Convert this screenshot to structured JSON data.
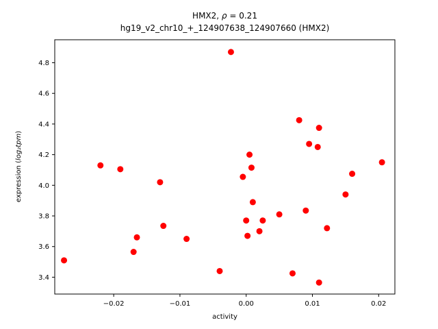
{
  "figure": {
    "title_prefix": "HMX2, ",
    "title_rho": "ρ",
    "title_suffix": " = 0.21",
    "subtitle": "hg19_v2_chr10_+_124907638_124907660 (HMX2)",
    "xlabel": "activity",
    "ylabel_prefix": "expression (",
    "ylabel_math": "log₂tpm",
    "ylabel_suffix": ")"
  },
  "chart_data": {
    "type": "scatter",
    "title": "HMX2, ρ = 0.21",
    "subtitle": "hg19_v2_chr10_+_124907638_124907660 (HMX2)",
    "xlabel": "activity",
    "ylabel": "expression (log2tpm)",
    "legend": "none",
    "grid": false,
    "marker_color": "#ff0000",
    "marker_radius": 4.5,
    "xlim": [
      -0.0289,
      0.02245
    ],
    "ylim": [
      3.29,
      4.95
    ],
    "xticks": [
      {
        "value": -0.02,
        "label": "−0.02"
      },
      {
        "value": -0.01,
        "label": "−0.01"
      },
      {
        "value": 0.0,
        "label": "0.00"
      },
      {
        "value": 0.01,
        "label": "0.01"
      },
      {
        "value": 0.02,
        "label": "0.02"
      }
    ],
    "yticks": [
      {
        "value": 3.4,
        "label": "3.4"
      },
      {
        "value": 3.6,
        "label": "3.6"
      },
      {
        "value": 3.8,
        "label": "3.8"
      },
      {
        "value": 4.0,
        "label": "4.0"
      },
      {
        "value": 4.2,
        "label": "4.2"
      },
      {
        "value": 4.4,
        "label": "4.4"
      },
      {
        "value": 4.6,
        "label": "4.6"
      },
      {
        "value": 4.8,
        "label": "4.8"
      }
    ],
    "points": [
      [
        -0.0275,
        3.51
      ],
      [
        -0.022,
        4.13
      ],
      [
        -0.019,
        4.105
      ],
      [
        -0.017,
        3.565
      ],
      [
        -0.0165,
        3.66
      ],
      [
        -0.013,
        4.02
      ],
      [
        -0.0125,
        3.735
      ],
      [
        -0.009,
        3.65
      ],
      [
        -0.004,
        3.44
      ],
      [
        -0.0023,
        4.87
      ],
      [
        -0.0005,
        4.055
      ],
      [
        0.0,
        3.77
      ],
      [
        0.0002,
        3.67
      ],
      [
        0.0005,
        4.2
      ],
      [
        0.0008,
        4.115
      ],
      [
        0.001,
        3.89
      ],
      [
        0.002,
        3.7
      ],
      [
        0.0025,
        3.77
      ],
      [
        0.005,
        3.81
      ],
      [
        0.007,
        3.425
      ],
      [
        0.008,
        4.425
      ],
      [
        0.009,
        3.835
      ],
      [
        0.0095,
        4.27
      ],
      [
        0.0108,
        4.25
      ],
      [
        0.011,
        4.375
      ],
      [
        0.011,
        3.365
      ],
      [
        0.0122,
        3.72
      ],
      [
        0.015,
        3.94
      ],
      [
        0.016,
        4.075
      ],
      [
        0.0205,
        4.15
      ]
    ]
  }
}
